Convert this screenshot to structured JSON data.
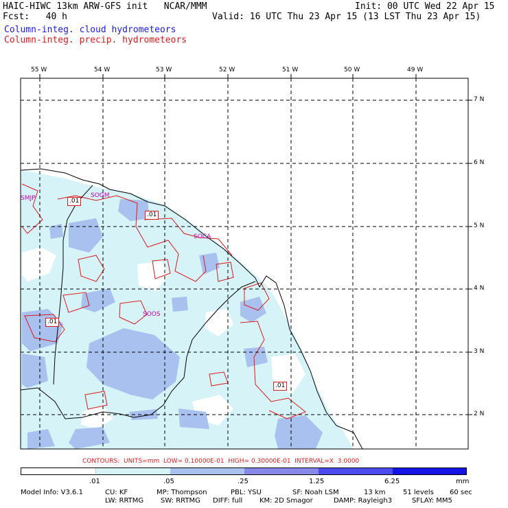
{
  "header": {
    "title_left": "HAIC-HIWC 13km ARW-GFS init   NCAR/MMM",
    "forecast": "Fcst:   40 h",
    "init": "Init: 00 UTC Wed 22 Apr 15",
    "valid": "Valid: 16 UTC Thu 23 Apr 15 (13 LST Thu 23 Apr 15)",
    "field_cloud": "Column-integ. cloud hydrometeors",
    "field_precip": "Column-integ. precip. hydrometeors"
  },
  "map": {
    "lon_labels": [
      "55 W",
      "54 W",
      "53 W",
      "52 W",
      "51 W",
      "50 W",
      "49 W"
    ],
    "lat_labels": [
      "7 N",
      "6 N",
      "5 N",
      "4 N",
      "3 N",
      "2 N"
    ],
    "sites": [
      "SMJP",
      "SOGM",
      "SOCA",
      "SOOS"
    ],
    "contour_labels": [
      ".01",
      ".01",
      ".01",
      ".01"
    ]
  },
  "contour_info": "CONTOURS:  UNITS=mm  LOW= 0.10000E-01  HIGH= 0.30000E-01  INTERVAL=X  3.0000",
  "colorbar": {
    "ticks": [
      ".01",
      ".05",
      ".25",
      "1.25",
      "6.25"
    ],
    "units": "mm",
    "colors": [
      "#ffffff",
      "#d6f4f8",
      "#a9c1ee",
      "#8888e8",
      "#4b4bee",
      "#1414e6"
    ]
  },
  "footer": {
    "line1": [
      "Model Info: V3.6.1",
      "CU: KF",
      "MP: Thompson",
      "PBL: YSU",
      "SF: Noah LSM",
      "13 km",
      "51 levels",
      "60 sec"
    ],
    "line2": [
      "LW: RRTMG",
      "SW: RRTMG",
      "DIFF: full",
      "KM: 2D Smagor",
      "DAMP: Rayleigh3",
      "SFLAY: MM5"
    ]
  }
}
